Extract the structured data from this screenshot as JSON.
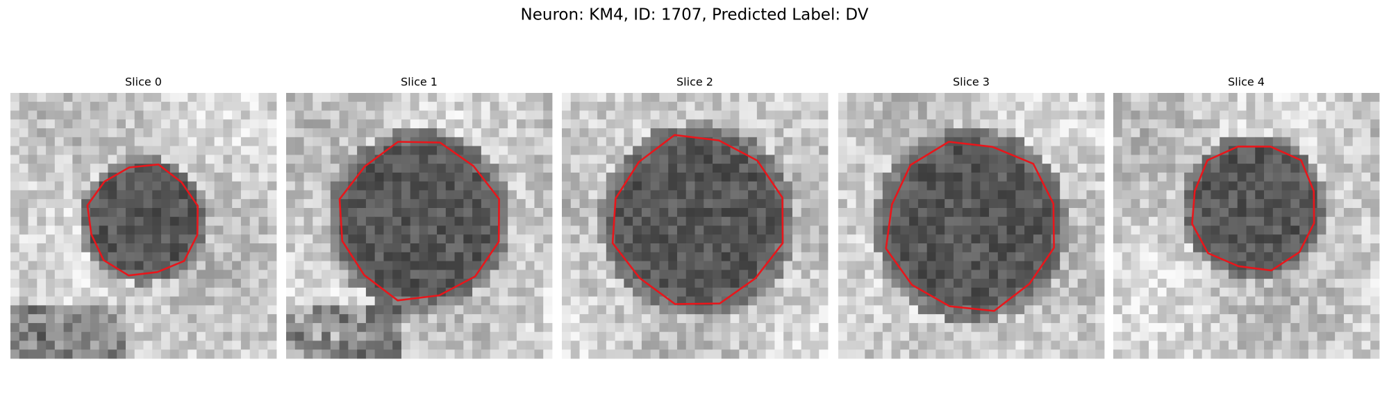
{
  "title": "Neuron: KM4, ID: 1707, Predicted Label: DV",
  "panels": [
    {
      "title": "Slice 0"
    },
    {
      "title": "Slice 1"
    },
    {
      "title": "Slice 2"
    },
    {
      "title": "Slice 3"
    },
    {
      "title": "Slice 4"
    }
  ]
}
